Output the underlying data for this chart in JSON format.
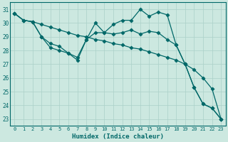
{
  "xlabel": "Humidex (Indice chaleur)",
  "xlim": [
    -0.5,
    23.5
  ],
  "ylim": [
    22.5,
    31.5
  ],
  "xticks": [
    0,
    1,
    2,
    3,
    4,
    5,
    6,
    7,
    8,
    9,
    10,
    11,
    12,
    13,
    14,
    15,
    16,
    17,
    18,
    19,
    20,
    21,
    22,
    23
  ],
  "yticks": [
    23,
    24,
    25,
    26,
    27,
    28,
    29,
    30,
    31
  ],
  "bg_color": "#cce8e0",
  "grid_color": "#aad0c8",
  "line_color": "#006868",
  "series": [
    {
      "x": [
        0,
        1,
        2,
        3,
        4,
        5,
        6,
        7,
        8,
        9,
        10,
        11,
        12,
        13,
        14,
        15,
        16,
        17,
        18,
        19,
        20,
        21,
        22,
        23
      ],
      "y": [
        30.7,
        30.2,
        30.1,
        29.9,
        29.7,
        29.5,
        29.3,
        29.1,
        29.0,
        28.8,
        28.7,
        28.5,
        28.4,
        28.2,
        28.1,
        27.9,
        27.7,
        27.5,
        27.3,
        27.0,
        26.6,
        26.0,
        25.2,
        23.0
      ],
      "marker": "D",
      "markersize": 2.5,
      "linewidth": 0.9
    },
    {
      "x": [
        0,
        1,
        2,
        3,
        4,
        5,
        6,
        7,
        8,
        9,
        10,
        11,
        12,
        13,
        14,
        15,
        16,
        17,
        18,
        19,
        20,
        21,
        22,
        23
      ],
      "y": [
        30.7,
        30.2,
        30.1,
        29.0,
        28.2,
        28.0,
        27.8,
        27.3,
        28.8,
        30.0,
        29.3,
        29.9,
        30.2,
        30.2,
        31.0,
        30.5,
        30.8,
        30.6,
        28.4,
        27.0,
        25.3,
        24.1,
        23.8,
        23.0
      ],
      "marker": "D",
      "markersize": 2.5,
      "linewidth": 0.9
    },
    {
      "x": [
        0,
        1,
        2,
        3,
        4,
        5,
        6,
        7,
        8,
        9,
        10,
        11,
        12,
        13,
        14,
        15,
        16,
        17,
        18,
        19,
        20,
        21,
        22,
        23
      ],
      "y": [
        30.7,
        30.2,
        30.1,
        29.0,
        28.5,
        28.3,
        27.8,
        27.5,
        28.8,
        29.3,
        29.3,
        29.2,
        29.3,
        29.5,
        29.2,
        29.4,
        29.3,
        28.8,
        28.4,
        27.0,
        25.3,
        24.1,
        23.8,
        23.0
      ],
      "marker": "D",
      "markersize": 2.5,
      "linewidth": 0.9
    }
  ]
}
